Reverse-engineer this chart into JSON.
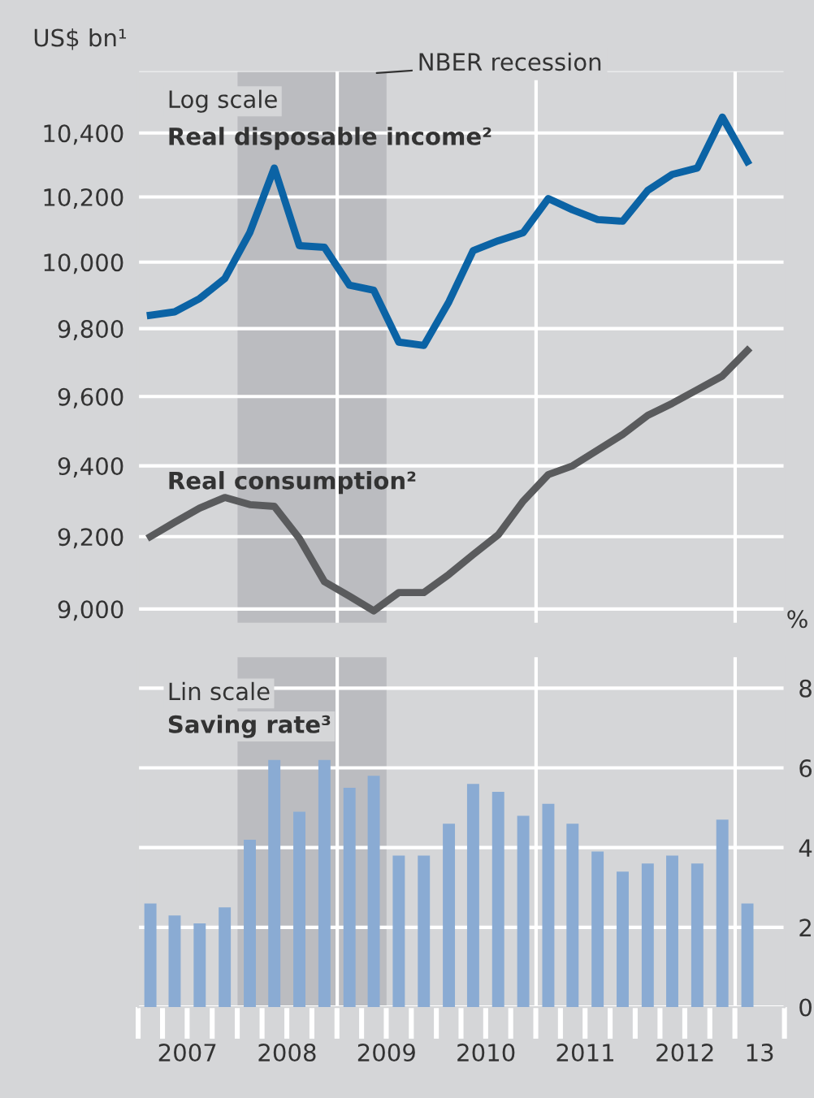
{
  "chart_data": [
    {
      "type": "line",
      "ylabel": "US$ bn¹",
      "log": "y",
      "x": [
        "2007-02-15",
        "2007-05-15",
        "2007-08-15",
        "2007-11-15",
        "2008-02-15",
        "2008-05-15",
        "2008-08-15",
        "2008-11-15",
        "2009-02-15",
        "2009-05-15",
        "2009-08-15",
        "2009-11-15",
        "2010-02-15",
        "2010-05-15",
        "2010-08-15",
        "2010-11-15",
        "2011-02-15",
        "2011-05-15",
        "2011-08-15",
        "2011-11-15",
        "2012-02-15",
        "2012-05-15",
        "2012-08-15",
        "2012-11-15",
        "2013-02-15"
      ],
      "series": [
        {
          "name": "Real disposable income²",
          "color": "#0b63a5",
          "values": [
            9840,
            9850,
            9890,
            9950,
            10090,
            10290,
            10050,
            10045,
            9930,
            9915,
            9760,
            9750,
            9880,
            10035,
            10065,
            10090,
            10195,
            10160,
            10130,
            10125,
            10220,
            10270,
            10290,
            10450,
            10310
          ]
        },
        {
          "name": "Real consumption²",
          "color": "#5a5b5d",
          "values": [
            9200,
            9240,
            9280,
            9310,
            9290,
            9285,
            9195,
            9075,
            9035,
            8995,
            9045,
            9045,
            9095,
            9150,
            9205,
            9300,
            9375,
            9400,
            9445,
            9490,
            9545,
            9580,
            9620,
            9660,
            9735
          ]
        }
      ],
      "xlim": [
        "2007-01-01",
        "2013-07-01"
      ],
      "ylim": [
        8960,
        10600
      ],
      "yticks": [
        {
          "value": 9000,
          "label": "9,000"
        },
        {
          "value": 9200,
          "label": "9,200"
        },
        {
          "value": 9400,
          "label": "9,400"
        },
        {
          "value": 9600,
          "label": "9,600"
        },
        {
          "value": 9800,
          "label": "9,800"
        },
        {
          "value": 10000,
          "label": "10,000"
        },
        {
          "value": 10200,
          "label": "10,200"
        },
        {
          "value": 10400,
          "label": "10,400"
        },
        {
          "value": 10600,
          "label": null
        }
      ],
      "annotations": [
        "Log scale"
      ],
      "bands": [
        {
          "axis": "x",
          "from": "2008-01-01",
          "to": "2009-07-01",
          "label": "NBER recession",
          "color": "#bbbcc0"
        }
      ],
      "ref_lines": [
        {
          "axis": "x",
          "value": "2009-01-01",
          "label": null,
          "color": "#ffffff"
        },
        {
          "axis": "x",
          "value": "2011-01-01",
          "label": null,
          "color": "#ffffff"
        },
        {
          "axis": "x",
          "value": "2013-01-01",
          "label": null,
          "color": "#ffffff"
        }
      ],
      "grid": "y",
      "tick_labels": "y",
      "line_style": "solid",
      "marker": "none"
    },
    {
      "type": "bar",
      "y2label": "%",
      "x": [
        "2007-02-15",
        "2007-05-15",
        "2007-08-15",
        "2007-11-15",
        "2008-02-15",
        "2008-05-15",
        "2008-08-15",
        "2008-11-15",
        "2009-02-15",
        "2009-05-15",
        "2009-08-15",
        "2009-11-15",
        "2010-02-15",
        "2010-05-15",
        "2010-08-15",
        "2010-11-15",
        "2011-02-15",
        "2011-05-15",
        "2011-08-15",
        "2011-11-15",
        "2012-02-15",
        "2012-05-15",
        "2012-08-15",
        "2012-11-15",
        "2013-02-15"
      ],
      "series": [
        {
          "name": "Saving rate³",
          "color": "#8aabd3",
          "axis": "y2",
          "values": [
            2.6,
            2.3,
            2.1,
            2.5,
            4.2,
            6.2,
            4.9,
            6.2,
            5.5,
            5.8,
            3.8,
            3.8,
            4.6,
            5.6,
            5.4,
            4.8,
            5.1,
            4.6,
            3.9,
            3.4,
            3.6,
            3.8,
            3.6,
            4.7,
            2.6
          ]
        }
      ],
      "xlim": [
        "2007-01-01",
        "2013-07-01"
      ],
      "xticks": [
        {
          "value": "2007-07-01",
          "label": "2007"
        },
        {
          "value": "2008-07-01",
          "label": "2008"
        },
        {
          "value": "2009-07-01",
          "label": "2009"
        },
        {
          "value": "2010-07-01",
          "label": "2010"
        },
        {
          "value": "2011-07-01",
          "label": "2011"
        },
        {
          "value": "2012-07-01",
          "label": "2012"
        },
        {
          "value": "2013-04-01",
          "label": "13"
        }
      ],
      "y2lim": [
        0,
        8.8
      ],
      "y2ticks": [
        0,
        2,
        4,
        6,
        8
      ],
      "annotations": [
        "Lin scale"
      ],
      "bands": [
        {
          "axis": "x",
          "from": "2008-01-01",
          "to": "2009-07-01",
          "label": null,
          "color": "#bbbcc0"
        }
      ],
      "ref_lines": [
        {
          "axis": "x",
          "value": "2009-01-01",
          "label": null,
          "color": "#ffffff"
        },
        {
          "axis": "x",
          "value": "2011-01-01",
          "label": null,
          "color": "#ffffff"
        },
        {
          "axis": "x",
          "value": "2013-01-01",
          "label": null,
          "color": "#ffffff"
        }
      ],
      "grid": "y"
    }
  ]
}
